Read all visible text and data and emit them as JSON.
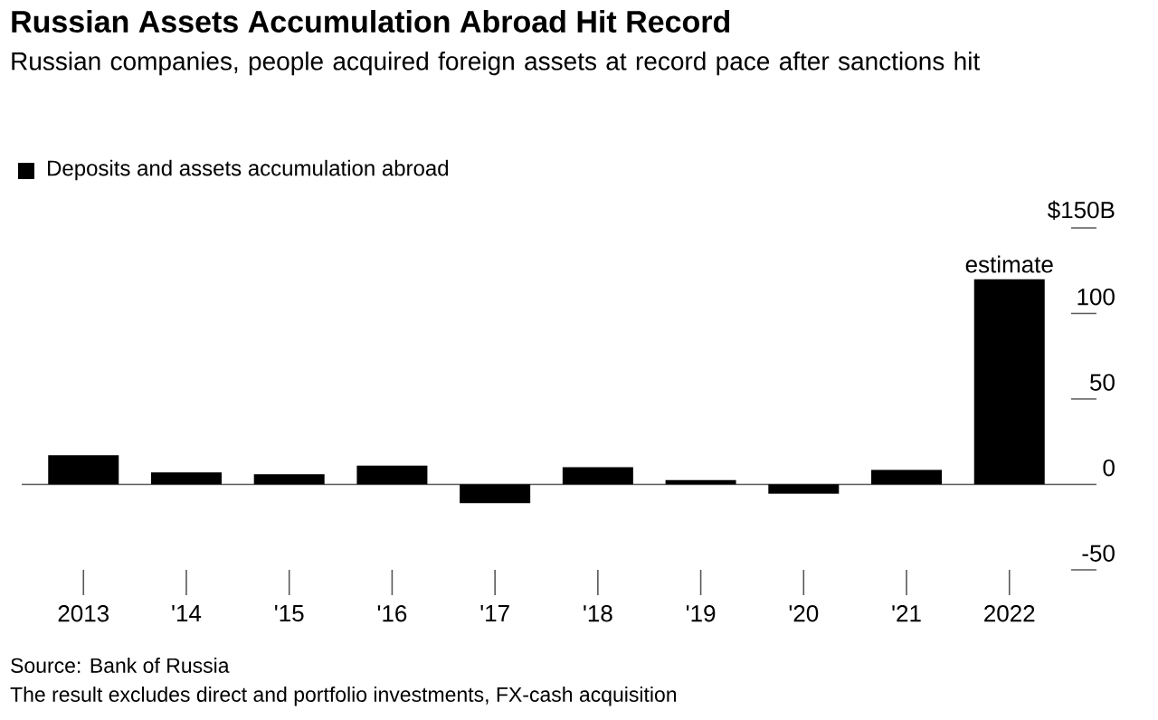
{
  "chart_data": {
    "type": "bar",
    "title": "Russian Assets Accumulation Abroad Hit Record",
    "subtitle": "Russian companies, people acquired foreign assets at record pace after sanctions hit",
    "categories": [
      "2013",
      "'14",
      "'15",
      "'16",
      "'17",
      "'18",
      "'19",
      "'20",
      "'21",
      "2022"
    ],
    "series": [
      {
        "name": "Deposits and assets accumulation abroad",
        "color": "#000000",
        "values": [
          17,
          7,
          6,
          11,
          -11,
          10,
          2.5,
          -5.5,
          8.5,
          120
        ]
      }
    ],
    "ylim": [
      -50,
      150
    ],
    "yticks": [
      {
        "value": 150,
        "label": "$150B"
      },
      100,
      50,
      0,
      -50
    ],
    "legend": "top left",
    "annotations": [
      {
        "text": "estimate",
        "x": "2022",
        "y": 120
      },
      "Source: Bank of Russia",
      "The result excludes direct and portfolio investments, FX-cash acquisition"
    ]
  }
}
